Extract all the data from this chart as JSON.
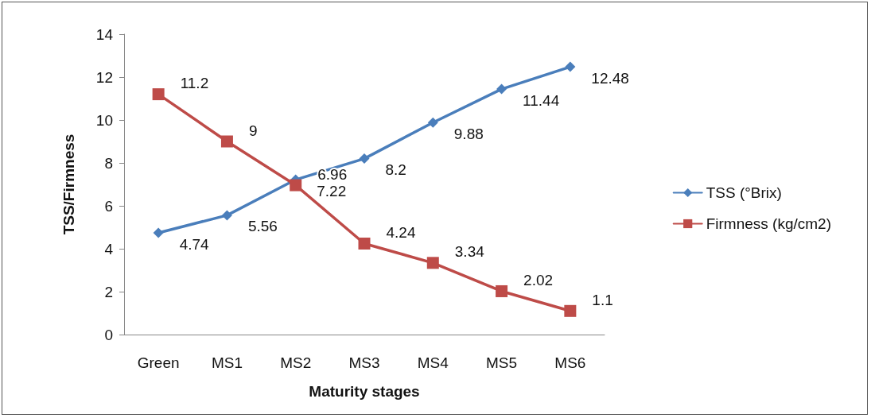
{
  "chart_data": {
    "type": "line",
    "xlabel": "Maturity stages",
    "ylabel": "TSS/Firmness",
    "categories": [
      "Green",
      "MS1",
      "MS2",
      "MS3",
      "MS4",
      "MS5",
      "MS6"
    ],
    "series": [
      {
        "name": "TSS (°Brix)",
        "color": "#4a7ebb",
        "marker": "diamond",
        "values": [
          4.74,
          5.56,
          7.22,
          8.2,
          9.88,
          11.44,
          12.48
        ]
      },
      {
        "name": "Firmness (kg/cm2)",
        "color": "#be4b48",
        "marker": "square",
        "values": [
          11.2,
          9,
          6.96,
          4.24,
          3.34,
          2.02,
          1.1
        ]
      }
    ],
    "ylim": [
      0,
      14
    ],
    "yticks": [
      0,
      2,
      4,
      6,
      8,
      10,
      12,
      14
    ],
    "grid": false,
    "legend": "right",
    "data_labels": true,
    "line_style": "solid"
  }
}
